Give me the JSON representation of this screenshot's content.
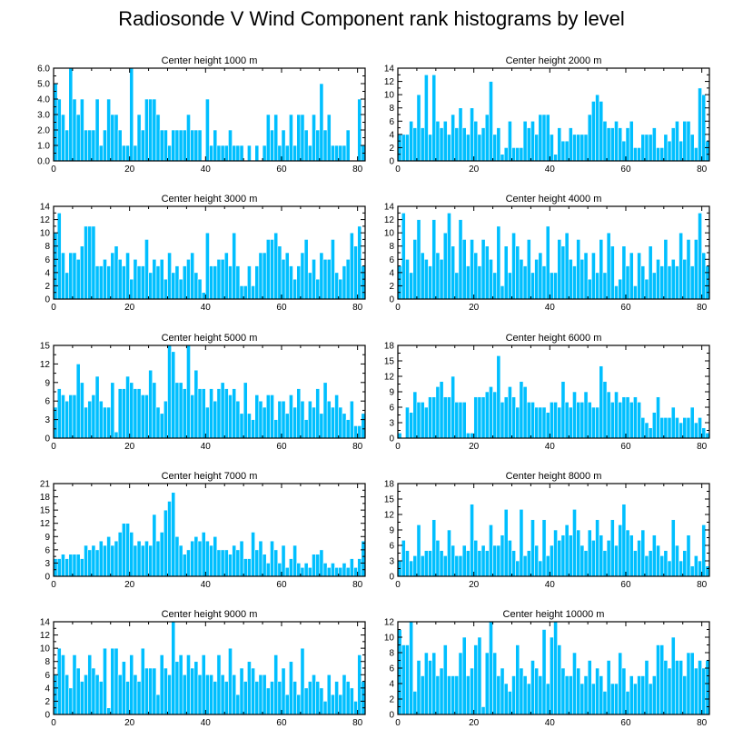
{
  "page_title": "Radiosonde V Wind Component rank histograms by level",
  "colors": {
    "bar": "#00BFFF",
    "bar_edge": "#ffffff",
    "axis": "#000000"
  },
  "chart_data": [
    {
      "type": "bar",
      "title": "Center height 1000 m",
      "ylim": [
        0,
        6
      ],
      "yticks": [
        "0.0",
        "1.0",
        "2.0",
        "3.0",
        "4.0",
        "5.0",
        "6.0"
      ],
      "xlim": [
        0,
        82
      ],
      "xticks": [
        0,
        20,
        40,
        60,
        80
      ],
      "values": [
        5,
        4,
        3,
        2,
        6,
        4,
        3,
        4,
        2,
        2,
        2,
        4,
        1,
        2,
        4,
        3,
        3,
        2,
        1,
        1,
        6,
        1,
        3,
        2,
        4,
        4,
        4,
        3,
        2,
        2,
        1,
        2,
        2,
        2,
        2,
        3,
        2,
        2,
        2,
        0,
        4,
        1,
        2,
        1,
        1,
        1,
        2,
        1,
        1,
        1,
        0,
        1,
        0,
        1,
        0,
        1,
        3,
        2,
        3,
        1,
        2,
        1,
        3,
        1,
        3,
        3,
        2,
        1,
        3,
        2,
        5,
        2,
        3,
        1,
        1,
        1,
        1,
        2,
        0,
        0,
        4,
        1
      ]
    },
    {
      "type": "bar",
      "title": "Center height 2000 m",
      "ylim": [
        0,
        14
      ],
      "yticks": [
        "0",
        "2",
        "4",
        "6",
        "8",
        "10",
        "12",
        "14"
      ],
      "xlim": [
        0,
        82
      ],
      "xticks": [
        0,
        20,
        40,
        60,
        80
      ],
      "values": [
        4,
        4,
        4,
        6,
        5,
        10,
        5,
        13,
        4,
        13,
        6,
        5,
        6,
        4,
        7,
        5,
        8,
        5,
        4,
        8,
        6,
        4,
        5,
        7,
        12,
        4,
        5,
        1,
        2,
        6,
        2,
        2,
        2,
        6,
        5,
        6,
        4,
        7,
        7,
        7,
        4,
        1,
        5,
        3,
        3,
        5,
        4,
        4,
        4,
        4,
        7,
        9,
        10,
        9,
        6,
        5,
        5,
        6,
        5,
        3,
        5,
        6,
        2,
        2,
        4,
        4,
        4,
        5,
        2,
        2,
        4,
        3,
        5,
        6,
        3,
        6,
        6,
        4,
        2,
        11,
        10,
        3
      ]
    },
    {
      "type": "bar",
      "title": "Center height 3000 m",
      "ylim": [
        0,
        14
      ],
      "yticks": [
        "0",
        "2",
        "4",
        "6",
        "8",
        "10",
        "12",
        "14"
      ],
      "xlim": [
        0,
        82
      ],
      "xticks": [
        0,
        20,
        40,
        60,
        80
      ],
      "values": [
        10,
        13,
        7,
        4,
        7,
        7,
        6,
        8,
        11,
        11,
        11,
        5,
        5,
        6,
        5,
        7,
        8,
        6,
        5,
        7,
        3,
        6,
        5,
        5,
        9,
        4,
        6,
        5,
        6,
        3,
        7,
        4,
        5,
        3,
        5,
        6,
        7,
        4,
        3,
        1,
        10,
        5,
        5,
        6,
        6,
        7,
        5,
        10,
        5,
        2,
        2,
        5,
        2,
        5,
        7,
        7,
        9,
        9,
        10,
        8,
        6,
        7,
        5,
        3,
        5,
        7,
        9,
        4,
        6,
        3,
        7,
        6,
        6,
        9,
        4,
        3,
        5,
        6,
        10,
        8,
        11,
        5
      ]
    },
    {
      "type": "bar",
      "title": "Center height 4000 m",
      "ylim": [
        0,
        14
      ],
      "yticks": [
        "0",
        "2",
        "4",
        "6",
        "8",
        "10",
        "12",
        "14"
      ],
      "xlim": [
        0,
        82
      ],
      "xticks": [
        0,
        20,
        40,
        60,
        80
      ],
      "values": [
        5,
        13,
        6,
        4,
        9,
        12,
        7,
        6,
        5,
        12,
        7,
        6,
        10,
        13,
        8,
        4,
        12,
        9,
        5,
        9,
        7,
        5,
        9,
        8,
        6,
        4,
        11,
        2,
        8,
        4,
        10,
        8,
        6,
        5,
        9,
        4,
        6,
        7,
        5,
        11,
        4,
        4,
        9,
        8,
        10,
        6,
        5,
        9,
        6,
        7,
        3,
        7,
        4,
        9,
        4,
        10,
        8,
        2,
        3,
        8,
        5,
        7,
        2,
        7,
        5,
        3,
        8,
        4,
        6,
        5,
        9,
        5,
        6,
        5,
        10,
        6,
        9,
        5,
        9,
        13,
        7,
        5
      ]
    },
    {
      "type": "bar",
      "title": "Center height 5000 m",
      "ylim": [
        0,
        15
      ],
      "yticks": [
        "0",
        "3",
        "6",
        "9",
        "12",
        "15"
      ],
      "xlim": [
        0,
        82
      ],
      "xticks": [
        0,
        20,
        40,
        60,
        80
      ],
      "values": [
        5,
        8,
        7,
        6,
        7,
        7,
        12,
        9,
        5,
        6,
        7,
        10,
        6,
        5,
        5,
        9,
        1,
        8,
        8,
        10,
        9,
        8,
        8,
        7,
        7,
        11,
        9,
        5,
        4,
        6,
        15,
        14,
        9,
        9,
        8,
        15,
        7,
        11,
        8,
        8,
        5,
        8,
        6,
        8,
        9,
        8,
        7,
        8,
        6,
        4,
        9,
        4,
        3,
        7,
        6,
        5,
        7,
        7,
        3,
        6,
        6,
        4,
        7,
        5,
        8,
        6,
        3,
        6,
        5,
        8,
        4,
        9,
        6,
        5,
        7,
        5,
        4,
        3,
        6,
        2,
        2,
        4
      ]
    },
    {
      "type": "bar",
      "title": "Center height 6000 m",
      "ylim": [
        0,
        18
      ],
      "yticks": [
        "0",
        "3",
        "6",
        "9",
        "12",
        "15",
        "18"
      ],
      "xlim": [
        0,
        82
      ],
      "xticks": [
        0,
        20,
        40,
        60,
        80
      ],
      "values": [
        1,
        0,
        6,
        5,
        9,
        7,
        7,
        6,
        8,
        8,
        10,
        11,
        8,
        8,
        12,
        7,
        7,
        7,
        1,
        1,
        8,
        8,
        8,
        9,
        10,
        9,
        16,
        7,
        8,
        10,
        8,
        6,
        11,
        10,
        7,
        7,
        6,
        6,
        6,
        5,
        7,
        7,
        6,
        11,
        7,
        6,
        9,
        7,
        7,
        9,
        7,
        6,
        6,
        14,
        11,
        9,
        7,
        9,
        7,
        8,
        8,
        7,
        8,
        7,
        4,
        3,
        2,
        5,
        8,
        4,
        4,
        4,
        6,
        4,
        3,
        4,
        4,
        6,
        3,
        4,
        2,
        1
      ]
    },
    {
      "type": "bar",
      "title": "Center height 7000 m",
      "ylim": [
        0,
        21
      ],
      "yticks": [
        "0",
        "3",
        "6",
        "9",
        "12",
        "15",
        "18",
        "21"
      ],
      "xlim": [
        0,
        82
      ],
      "xticks": [
        0,
        20,
        40,
        60,
        80
      ],
      "values": [
        4,
        4,
        5,
        4,
        5,
        5,
        5,
        4,
        7,
        6,
        7,
        6,
        8,
        7,
        9,
        7,
        8,
        10,
        12,
        12,
        10,
        7,
        8,
        7,
        8,
        7,
        14,
        8,
        10,
        15,
        17,
        19,
        9,
        7,
        5,
        6,
        8,
        9,
        8,
        10,
        8,
        7,
        9,
        6,
        6,
        6,
        5,
        7,
        6,
        8,
        4,
        4,
        10,
        6,
        8,
        5,
        3,
        8,
        6,
        3,
        7,
        2,
        4,
        7,
        3,
        2,
        3,
        2,
        5,
        5,
        6,
        3,
        2,
        3,
        2,
        2,
        3,
        2,
        4,
        2,
        4,
        8
      ]
    },
    {
      "type": "bar",
      "title": "Center height 8000 m",
      "ylim": [
        0,
        18
      ],
      "yticks": [
        "0",
        "3",
        "6",
        "9",
        "12",
        "15",
        "18"
      ],
      "xlim": [
        0,
        82
      ],
      "xticks": [
        0,
        20,
        40,
        60,
        80
      ],
      "values": [
        3,
        7,
        5,
        3,
        4,
        10,
        4,
        5,
        5,
        11,
        7,
        5,
        4,
        9,
        6,
        4,
        4,
        6,
        5,
        14,
        7,
        5,
        6,
        5,
        10,
        6,
        6,
        8,
        13,
        7,
        5,
        3,
        13,
        4,
        5,
        11,
        6,
        3,
        11,
        4,
        6,
        9,
        7,
        8,
        10,
        8,
        13,
        9,
        6,
        5,
        9,
        7,
        11,
        8,
        5,
        7,
        11,
        6,
        10,
        14,
        9,
        8,
        5,
        7,
        9,
        4,
        5,
        8,
        6,
        4,
        5,
        3,
        11,
        6,
        3,
        5,
        8,
        2,
        4,
        3,
        10,
        2
      ]
    },
    {
      "type": "bar",
      "title": "Center height 9000 m",
      "ylim": [
        0,
        14
      ],
      "yticks": [
        "0",
        "2",
        "4",
        "6",
        "8",
        "10",
        "12",
        "14"
      ],
      "xlim": [
        0,
        82
      ],
      "xticks": [
        0,
        20,
        40,
        60,
        80
      ],
      "values": [
        6,
        10,
        9,
        6,
        4,
        9,
        7,
        5,
        6,
        9,
        7,
        6,
        5,
        10,
        1,
        10,
        10,
        6,
        8,
        5,
        9,
        6,
        5,
        10,
        7,
        7,
        7,
        3,
        9,
        7,
        6,
        14,
        8,
        9,
        6,
        9,
        7,
        8,
        6,
        9,
        6,
        6,
        5,
        9,
        6,
        5,
        10,
        6,
        3,
        7,
        5,
        8,
        7,
        5,
        6,
        6,
        4,
        5,
        9,
        5,
        7,
        3,
        8,
        5,
        3,
        10,
        4,
        5,
        6,
        5,
        4,
        2,
        6,
        3,
        5,
        3,
        6,
        5,
        4,
        2,
        9,
        5
      ]
    },
    {
      "type": "bar",
      "title": "Center height 10000 m",
      "ylim": [
        0,
        12
      ],
      "yticks": [
        "0",
        "2",
        "4",
        "6",
        "8",
        "10",
        "12"
      ],
      "xlim": [
        0,
        82
      ],
      "xticks": [
        0,
        20,
        40,
        60,
        80
      ],
      "values": [
        11,
        9,
        9,
        12,
        3,
        7,
        5,
        8,
        7,
        8,
        5,
        6,
        9,
        5,
        5,
        5,
        8,
        10,
        5,
        6,
        9,
        10,
        1,
        8,
        12,
        8,
        5,
        6,
        4,
        3,
        5,
        9,
        6,
        5,
        4,
        7,
        6,
        5,
        11,
        4,
        10,
        12,
        9,
        6,
        5,
        5,
        8,
        6,
        4,
        5,
        7,
        4,
        6,
        5,
        3,
        7,
        4,
        4,
        8,
        6,
        3,
        5,
        4,
        5,
        5,
        7,
        4,
        5,
        9,
        9,
        7,
        6,
        10,
        7,
        7,
        5,
        8,
        8,
        6,
        7,
        6,
        7
      ]
    }
  ]
}
